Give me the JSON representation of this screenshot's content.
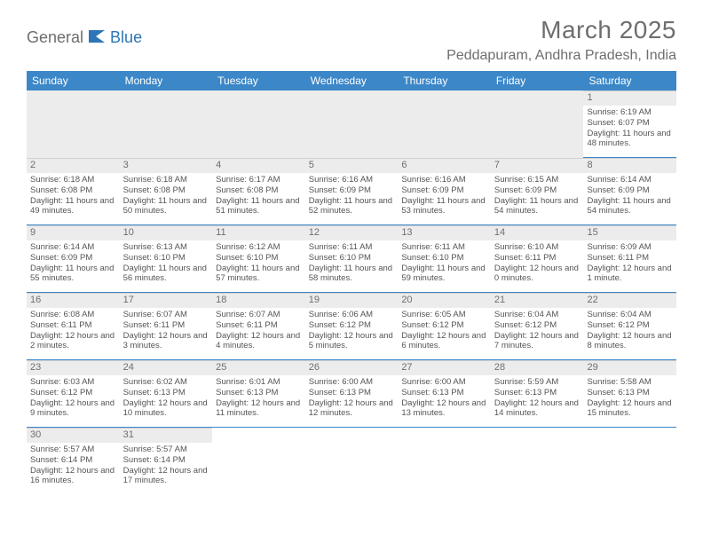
{
  "logo": {
    "text1": "General",
    "text2": "Blue"
  },
  "title": "March 2025",
  "location": "Peddapuram, Andhra Pradesh, India",
  "day_headers": [
    "Sunday",
    "Monday",
    "Tuesday",
    "Wednesday",
    "Thursday",
    "Friday",
    "Saturday"
  ],
  "colors": {
    "header_bg": "#3b87c8",
    "header_text": "#ffffff",
    "daynum_bg": "#ececec",
    "cell_border": "#3b87c8",
    "title_color": "#6e6e6e",
    "logo_gray": "#6e6e6e",
    "logo_blue": "#2d75b6"
  },
  "weeks": [
    [
      {
        "empty": true
      },
      {
        "empty": true
      },
      {
        "empty": true
      },
      {
        "empty": true
      },
      {
        "empty": true
      },
      {
        "empty": true
      },
      {
        "day": "1",
        "sunrise": "Sunrise: 6:19 AM",
        "sunset": "Sunset: 6:07 PM",
        "daylight": "Daylight: 11 hours and 48 minutes."
      }
    ],
    [
      {
        "day": "2",
        "sunrise": "Sunrise: 6:18 AM",
        "sunset": "Sunset: 6:08 PM",
        "daylight": "Daylight: 11 hours and 49 minutes."
      },
      {
        "day": "3",
        "sunrise": "Sunrise: 6:18 AM",
        "sunset": "Sunset: 6:08 PM",
        "daylight": "Daylight: 11 hours and 50 minutes."
      },
      {
        "day": "4",
        "sunrise": "Sunrise: 6:17 AM",
        "sunset": "Sunset: 6:08 PM",
        "daylight": "Daylight: 11 hours and 51 minutes."
      },
      {
        "day": "5",
        "sunrise": "Sunrise: 6:16 AM",
        "sunset": "Sunset: 6:09 PM",
        "daylight": "Daylight: 11 hours and 52 minutes."
      },
      {
        "day": "6",
        "sunrise": "Sunrise: 6:16 AM",
        "sunset": "Sunset: 6:09 PM",
        "daylight": "Daylight: 11 hours and 53 minutes."
      },
      {
        "day": "7",
        "sunrise": "Sunrise: 6:15 AM",
        "sunset": "Sunset: 6:09 PM",
        "daylight": "Daylight: 11 hours and 54 minutes."
      },
      {
        "day": "8",
        "sunrise": "Sunrise: 6:14 AM",
        "sunset": "Sunset: 6:09 PM",
        "daylight": "Daylight: 11 hours and 54 minutes."
      }
    ],
    [
      {
        "day": "9",
        "sunrise": "Sunrise: 6:14 AM",
        "sunset": "Sunset: 6:09 PM",
        "daylight": "Daylight: 11 hours and 55 minutes."
      },
      {
        "day": "10",
        "sunrise": "Sunrise: 6:13 AM",
        "sunset": "Sunset: 6:10 PM",
        "daylight": "Daylight: 11 hours and 56 minutes."
      },
      {
        "day": "11",
        "sunrise": "Sunrise: 6:12 AM",
        "sunset": "Sunset: 6:10 PM",
        "daylight": "Daylight: 11 hours and 57 minutes."
      },
      {
        "day": "12",
        "sunrise": "Sunrise: 6:11 AM",
        "sunset": "Sunset: 6:10 PM",
        "daylight": "Daylight: 11 hours and 58 minutes."
      },
      {
        "day": "13",
        "sunrise": "Sunrise: 6:11 AM",
        "sunset": "Sunset: 6:10 PM",
        "daylight": "Daylight: 11 hours and 59 minutes."
      },
      {
        "day": "14",
        "sunrise": "Sunrise: 6:10 AM",
        "sunset": "Sunset: 6:11 PM",
        "daylight": "Daylight: 12 hours and 0 minutes."
      },
      {
        "day": "15",
        "sunrise": "Sunrise: 6:09 AM",
        "sunset": "Sunset: 6:11 PM",
        "daylight": "Daylight: 12 hours and 1 minute."
      }
    ],
    [
      {
        "day": "16",
        "sunrise": "Sunrise: 6:08 AM",
        "sunset": "Sunset: 6:11 PM",
        "daylight": "Daylight: 12 hours and 2 minutes."
      },
      {
        "day": "17",
        "sunrise": "Sunrise: 6:07 AM",
        "sunset": "Sunset: 6:11 PM",
        "daylight": "Daylight: 12 hours and 3 minutes."
      },
      {
        "day": "18",
        "sunrise": "Sunrise: 6:07 AM",
        "sunset": "Sunset: 6:11 PM",
        "daylight": "Daylight: 12 hours and 4 minutes."
      },
      {
        "day": "19",
        "sunrise": "Sunrise: 6:06 AM",
        "sunset": "Sunset: 6:12 PM",
        "daylight": "Daylight: 12 hours and 5 minutes."
      },
      {
        "day": "20",
        "sunrise": "Sunrise: 6:05 AM",
        "sunset": "Sunset: 6:12 PM",
        "daylight": "Daylight: 12 hours and 6 minutes."
      },
      {
        "day": "21",
        "sunrise": "Sunrise: 6:04 AM",
        "sunset": "Sunset: 6:12 PM",
        "daylight": "Daylight: 12 hours and 7 minutes."
      },
      {
        "day": "22",
        "sunrise": "Sunrise: 6:04 AM",
        "sunset": "Sunset: 6:12 PM",
        "daylight": "Daylight: 12 hours and 8 minutes."
      }
    ],
    [
      {
        "day": "23",
        "sunrise": "Sunrise: 6:03 AM",
        "sunset": "Sunset: 6:12 PM",
        "daylight": "Daylight: 12 hours and 9 minutes."
      },
      {
        "day": "24",
        "sunrise": "Sunrise: 6:02 AM",
        "sunset": "Sunset: 6:13 PM",
        "daylight": "Daylight: 12 hours and 10 minutes."
      },
      {
        "day": "25",
        "sunrise": "Sunrise: 6:01 AM",
        "sunset": "Sunset: 6:13 PM",
        "daylight": "Daylight: 12 hours and 11 minutes."
      },
      {
        "day": "26",
        "sunrise": "Sunrise: 6:00 AM",
        "sunset": "Sunset: 6:13 PM",
        "daylight": "Daylight: 12 hours and 12 minutes."
      },
      {
        "day": "27",
        "sunrise": "Sunrise: 6:00 AM",
        "sunset": "Sunset: 6:13 PM",
        "daylight": "Daylight: 12 hours and 13 minutes."
      },
      {
        "day": "28",
        "sunrise": "Sunrise: 5:59 AM",
        "sunset": "Sunset: 6:13 PM",
        "daylight": "Daylight: 12 hours and 14 minutes."
      },
      {
        "day": "29",
        "sunrise": "Sunrise: 5:58 AM",
        "sunset": "Sunset: 6:13 PM",
        "daylight": "Daylight: 12 hours and 15 minutes."
      }
    ],
    [
      {
        "day": "30",
        "sunrise": "Sunrise: 5:57 AM",
        "sunset": "Sunset: 6:14 PM",
        "daylight": "Daylight: 12 hours and 16 minutes."
      },
      {
        "day": "31",
        "sunrise": "Sunrise: 5:57 AM",
        "sunset": "Sunset: 6:14 PM",
        "daylight": "Daylight: 12 hours and 17 minutes."
      },
      {
        "empty": true,
        "blank": true
      },
      {
        "empty": true,
        "blank": true
      },
      {
        "empty": true,
        "blank": true
      },
      {
        "empty": true,
        "blank": true
      },
      {
        "empty": true,
        "blank": true
      }
    ]
  ]
}
